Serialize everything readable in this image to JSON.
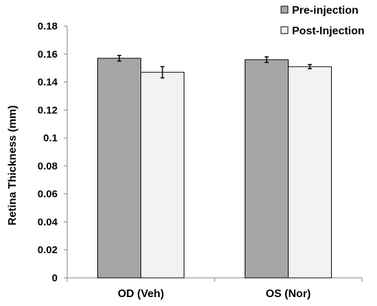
{
  "chart_data": {
    "type": "bar",
    "title": "",
    "xlabel": "",
    "ylabel": "Retina Thickness (mm)",
    "ylim": [
      0,
      0.18
    ],
    "yticks": [
      "0",
      "0.02",
      "0.04",
      "0.06",
      "0.08",
      "0.1",
      "0.12",
      "0.14",
      "0.16",
      "0.18"
    ],
    "categories": [
      "OD (Veh)",
      "OS (Nor)"
    ],
    "series": [
      {
        "name": "Pre-injection",
        "color": "#a6a6a6",
        "values": [
          0.157,
          0.156
        ],
        "errors": [
          0.002,
          0.002
        ]
      },
      {
        "name": "Post-Injection",
        "color": "#f2f2f2",
        "values": [
          0.147,
          0.151
        ],
        "errors": [
          0.004,
          0.0015
        ]
      }
    ],
    "grid": false,
    "legend_position": "top-right"
  }
}
